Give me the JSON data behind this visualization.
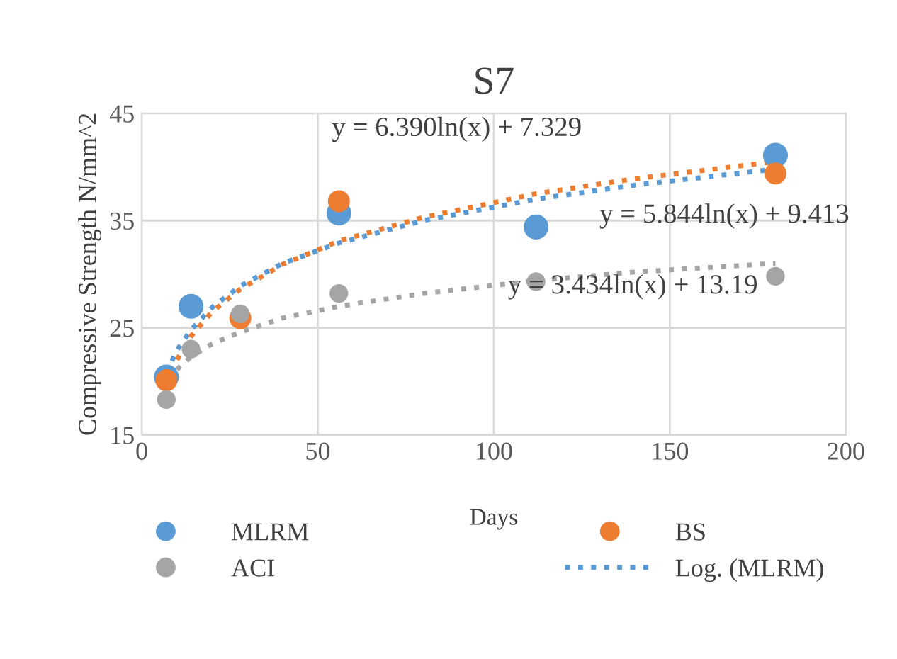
{
  "chart_data": {
    "type": "scatter",
    "title": "S7",
    "xlabel": "Days",
    "ylabel": "Compressive Strength N/mm^2",
    "x": [
      7,
      14,
      28,
      56,
      112,
      180
    ],
    "series": [
      {
        "name": "MLRM",
        "color": "#5b9bd5",
        "values": [
          20.4,
          27.0,
          null,
          35.7,
          34.4,
          41.1
        ]
      },
      {
        "name": "BS",
        "color": "#ed7d31",
        "values": [
          20.1,
          null,
          25.9,
          36.8,
          null,
          39.4
        ]
      },
      {
        "name": "ACI",
        "color": "#a5a5a5",
        "values": [
          18.3,
          23.0,
          26.3,
          28.2,
          29.3,
          29.8
        ]
      },
      {
        "name": "Log. (MLRM)",
        "type": "line",
        "line_style": "dotted",
        "marker": "none",
        "color": "#5b9bd5",
        "x": [
          7,
          10,
          14,
          20,
          28,
          40,
          56,
          80,
          112,
          140,
          180
        ],
        "values": [
          20.8,
          22.9,
          24.8,
          26.9,
          28.9,
          31.0,
          32.9,
          35.0,
          37.0,
          38.3,
          39.8
        ]
      },
      {
        "type": "line",
        "line_style": "dotted",
        "marker": "none",
        "color": "#ed7d31",
        "x": [
          7,
          10,
          14,
          20,
          28,
          40,
          56,
          80,
          112,
          140,
          180
        ],
        "values": [
          19.8,
          22.0,
          24.2,
          26.5,
          28.6,
          30.9,
          33.1,
          35.3,
          37.5,
          38.9,
          40.5
        ]
      },
      {
        "type": "line",
        "line_style": "dotted",
        "marker": "none",
        "color": "#a5a5a5",
        "x": [
          10,
          14,
          20,
          28,
          40,
          56,
          80,
          112,
          140,
          180
        ],
        "values": [
          21.1,
          22.3,
          23.5,
          24.6,
          25.9,
          27.0,
          28.2,
          29.4,
          30.2,
          31.0
        ]
      }
    ],
    "annotations": [
      "y = 6.390ln(x) + 7.329",
      "y = 5.844ln(x) + 9.413",
      "y = 3.434ln(x) + 13.19"
    ],
    "marker": "circle",
    "xlim": [
      0,
      200
    ],
    "xticks": [
      0,
      50,
      100,
      150,
      200
    ],
    "ylim": [
      15,
      45
    ],
    "yticks": [
      15,
      25,
      35,
      45
    ],
    "grid": true,
    "legend": "bottom"
  }
}
